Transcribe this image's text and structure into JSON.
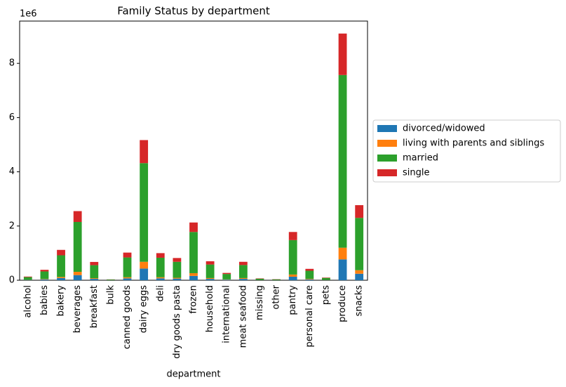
{
  "chart_data": {
    "type": "stacked_bar",
    "title": "Family Status by department",
    "xlabel": "department",
    "y_offset_label": "1e6",
    "categories": [
      "alcohol",
      "babies",
      "bakery",
      "beverages",
      "breakfast",
      "bulk",
      "canned goods",
      "dairy eggs",
      "deli",
      "dry goods pasta",
      "frozen",
      "household",
      "international",
      "meat seafood",
      "missing",
      "other",
      "pantry",
      "personal care",
      "pets",
      "produce",
      "snacks"
    ],
    "series": [
      {
        "name": "divorced/widowed",
        "color": "#1f77b4",
        "values": [
          0.01,
          0.03,
          0.08,
          0.19,
          0.05,
          0.002,
          0.07,
          0.43,
          0.07,
          0.06,
          0.16,
          0.05,
          0.02,
          0.05,
          0.005,
          0.003,
          0.13,
          0.03,
          0.007,
          0.77,
          0.24
        ]
      },
      {
        "name": "living with parents and siblings",
        "color": "#ff7f0e",
        "values": [
          0.005,
          0.015,
          0.04,
          0.12,
          0.025,
          0.001,
          0.04,
          0.25,
          0.04,
          0.03,
          0.1,
          0.03,
          0.01,
          0.03,
          0.003,
          0.002,
          0.08,
          0.02,
          0.004,
          0.43,
          0.13
        ]
      },
      {
        "name": "married",
        "color": "#2ca02c",
        "values": [
          0.1,
          0.28,
          0.8,
          1.84,
          0.48,
          0.022,
          0.73,
          3.64,
          0.72,
          0.59,
          1.52,
          0.5,
          0.2,
          0.48,
          0.05,
          0.028,
          1.27,
          0.3,
          0.075,
          6.37,
          1.93
        ]
      },
      {
        "name": "single",
        "color": "#d62728",
        "values": [
          0.02,
          0.06,
          0.2,
          0.4,
          0.12,
          0.005,
          0.18,
          0.85,
          0.17,
          0.14,
          0.35,
          0.12,
          0.04,
          0.12,
          0.012,
          0.007,
          0.3,
          0.07,
          0.014,
          1.53,
          0.47
        ]
      }
    ],
    "ylim": [
      0,
      9.56
    ],
    "yticks": [
      0,
      2,
      4,
      6,
      8
    ],
    "grid": false,
    "legend": "center left outside"
  }
}
